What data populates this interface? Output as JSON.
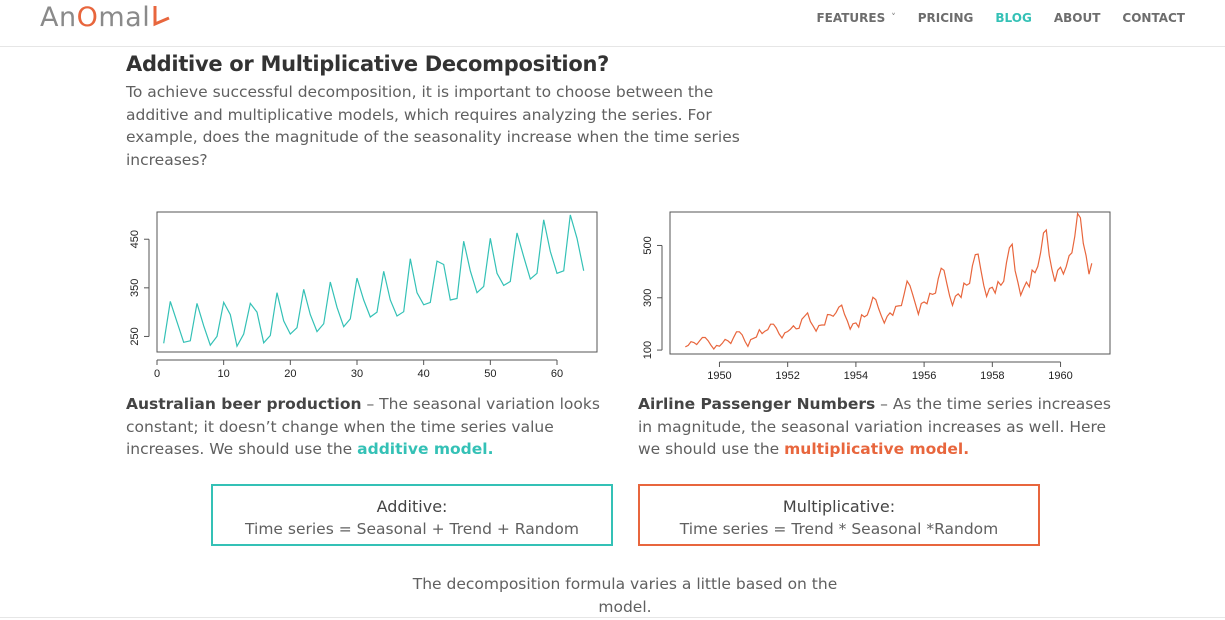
{
  "header": {
    "logo_text": "AnOmaly",
    "logo_parts": {
      "a": "An",
      "o": "O",
      "rest": "mal"
    },
    "accent_color": "#e8663d",
    "nav": [
      {
        "label": "FEATURES",
        "has_dropdown": true,
        "active": false
      },
      {
        "label": "PRICING",
        "active": false
      },
      {
        "label": "BLOG",
        "active": true
      },
      {
        "label": "ABOUT",
        "active": false
      },
      {
        "label": "CONTACT",
        "active": false
      }
    ],
    "active_color": "#34c1b6"
  },
  "article": {
    "title": "Additive or Multiplicative Decomposition?",
    "intro": "To achieve successful decomposition, it is important to choose between the additive and multiplicative models, which requires analyzing the series. For example, does the magnitude of the seasonality increase when the time series increases?",
    "left_caption": {
      "bold": "Australian beer production",
      "text": " – The seasonal variation looks constant; it doesn’t change when the time series value increases. We should use the ",
      "link": "additive model."
    },
    "right_caption": {
      "bold": "Airline Passenger Numbers",
      "text": " – As the time series increases in magnitude, the seasonal variation increases as well. Here we should use the ",
      "link": "multiplicative model."
    },
    "additive_box": {
      "title": "Additive:",
      "formula": "Time series = Seasonal + Trend + Random",
      "color": "#34c1b6"
    },
    "multiplicative_box": {
      "title": "Multiplicative:",
      "formula": "Time series = Trend * Seasonal *Random",
      "color": "#e8663d"
    },
    "footer_note": "The decomposition formula varies a little based on the model."
  },
  "chart_data": [
    {
      "type": "line",
      "color": "#34c1b6",
      "xlim": [
        0,
        66
      ],
      "ylim": [
        218,
        506
      ],
      "xticks": [
        0,
        10,
        20,
        30,
        40,
        50,
        60
      ],
      "yticks": [
        250,
        350,
        450
      ],
      "x": [
        1,
        2,
        3,
        4,
        5,
        6,
        7,
        8,
        9,
        10,
        11,
        12,
        13,
        14,
        15,
        16,
        17,
        18,
        19,
        20,
        21,
        22,
        23,
        24,
        25,
        26,
        27,
        28,
        29,
        30,
        31,
        32,
        33,
        34,
        35,
        36,
        37,
        38,
        39,
        40,
        41,
        42,
        43,
        44,
        45,
        46,
        47,
        48,
        49,
        50,
        51,
        52,
        53,
        54,
        55,
        56,
        57,
        58,
        59,
        60,
        61,
        62,
        63,
        64
      ],
      "values": [
        236,
        322,
        280,
        238,
        241,
        318,
        272,
        232,
        250,
        320,
        295,
        230,
        255,
        318,
        300,
        237,
        252,
        340,
        282,
        255,
        268,
        347,
        295,
        260,
        276,
        362,
        310,
        270,
        286,
        370,
        325,
        290,
        300,
        384,
        325,
        292,
        301,
        410,
        340,
        315,
        320,
        405,
        398,
        325,
        328,
        446,
        385,
        340,
        353,
        452,
        380,
        355,
        363,
        463,
        414,
        368,
        380,
        490,
        425,
        380,
        385,
        500,
        452,
        385
      ]
    },
    {
      "type": "line",
      "color": "#e8663d",
      "xlim": [
        1948.55,
        1961.45
      ],
      "ylim": [
        85,
        628
      ],
      "xticks": [
        1950,
        1952,
        1954,
        1956,
        1958,
        1960
      ],
      "yticks": [
        100,
        300,
        500
      ],
      "x_start": 1949,
      "x_step": 0.0833333,
      "values": [
        112,
        118,
        132,
        129,
        121,
        135,
        148,
        148,
        136,
        119,
        104,
        118,
        115,
        126,
        141,
        135,
        125,
        149,
        170,
        170,
        158,
        133,
        114,
        140,
        145,
        150,
        178,
        163,
        172,
        178,
        199,
        199,
        184,
        162,
        146,
        166,
        171,
        180,
        193,
        181,
        183,
        218,
        230,
        242,
        209,
        191,
        172,
        194,
        196,
        196,
        236,
        235,
        229,
        243,
        264,
        272,
        237,
        211,
        180,
        201,
        204,
        188,
        235,
        227,
        234,
        264,
        302,
        293,
        259,
        229,
        203,
        229,
        242,
        233,
        267,
        269,
        270,
        315,
        364,
        347,
        312,
        274,
        237,
        278,
        284,
        277,
        317,
        313,
        318,
        374,
        413,
        405,
        355,
        306,
        271,
        306,
        315,
        301,
        356,
        348,
        355,
        422,
        465,
        467,
        404,
        347,
        305,
        336,
        340,
        318,
        362,
        348,
        363,
        435,
        491,
        505,
        404,
        359,
        310,
        337,
        360,
        342,
        406,
        396,
        420,
        472,
        548,
        559,
        463,
        407,
        362,
        405,
        417,
        391,
        419,
        461,
        472,
        535,
        622,
        606,
        508,
        461,
        390,
        432
      ]
    }
  ]
}
